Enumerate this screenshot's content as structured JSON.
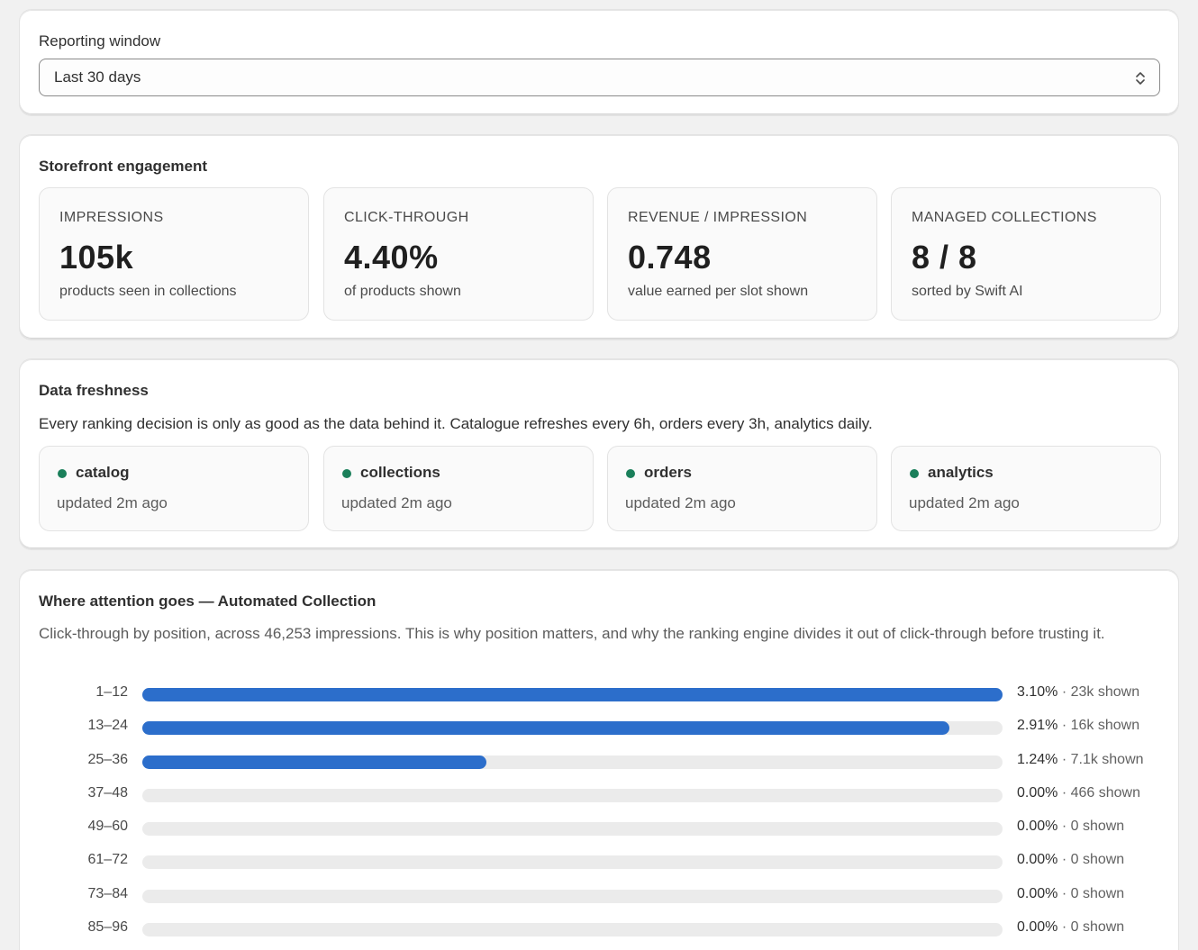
{
  "reporting_window": {
    "label": "Reporting window",
    "selected": "Last 30 days"
  },
  "engagement": {
    "title": "Storefront engagement",
    "metrics": [
      {
        "label": "IMPRESSIONS",
        "value": "105k",
        "sub": "products seen in collections"
      },
      {
        "label": "CLICK-THROUGH",
        "value": "4.40%",
        "sub": "of products shown"
      },
      {
        "label": "REVENUE / IMPRESSION",
        "value": "0.748",
        "sub": "value earned per slot shown"
      },
      {
        "label": "MANAGED COLLECTIONS",
        "value": "8 / 8",
        "sub": "sorted by Swift AI"
      }
    ]
  },
  "freshness": {
    "title": "Data freshness",
    "description": "Every ranking decision is only as good as the data behind it. Catalogue refreshes every 6h, orders every 3h, analytics daily.",
    "status_color": "#1a7f5a",
    "sources": [
      {
        "name": "catalog",
        "updated": "updated 2m ago"
      },
      {
        "name": "collections",
        "updated": "updated 2m ago"
      },
      {
        "name": "orders",
        "updated": "updated 2m ago"
      },
      {
        "name": "analytics",
        "updated": "updated 2m ago"
      }
    ]
  },
  "attention": {
    "title": "Where attention goes — Automated Collection",
    "description": "Click-through by position, across 46,253 impressions. This is why position matters, and why the ranking engine divides it out of click-through before trusting it.",
    "bar_color": "#2c6ecb",
    "rows": [
      {
        "position": "1–12",
        "pct": "3.10%",
        "shown": " · 23k shown",
        "ctr": 3.1
      },
      {
        "position": "13–24",
        "pct": "2.91%",
        "shown": " · 16k shown",
        "ctr": 2.91
      },
      {
        "position": "25–36",
        "pct": "1.24%",
        "shown": " · 7.1k shown",
        "ctr": 1.24
      },
      {
        "position": "37–48",
        "pct": "0.00%",
        "shown": " · 466 shown",
        "ctr": 0
      },
      {
        "position": "49–60",
        "pct": "0.00%",
        "shown": " · 0 shown",
        "ctr": 0
      },
      {
        "position": "61–72",
        "pct": "0.00%",
        "shown": " · 0 shown",
        "ctr": 0
      },
      {
        "position": "73–84",
        "pct": "0.00%",
        "shown": " · 0 shown",
        "ctr": 0
      },
      {
        "position": "85–96",
        "pct": "0.00%",
        "shown": " · 0 shown",
        "ctr": 0
      }
    ]
  }
}
